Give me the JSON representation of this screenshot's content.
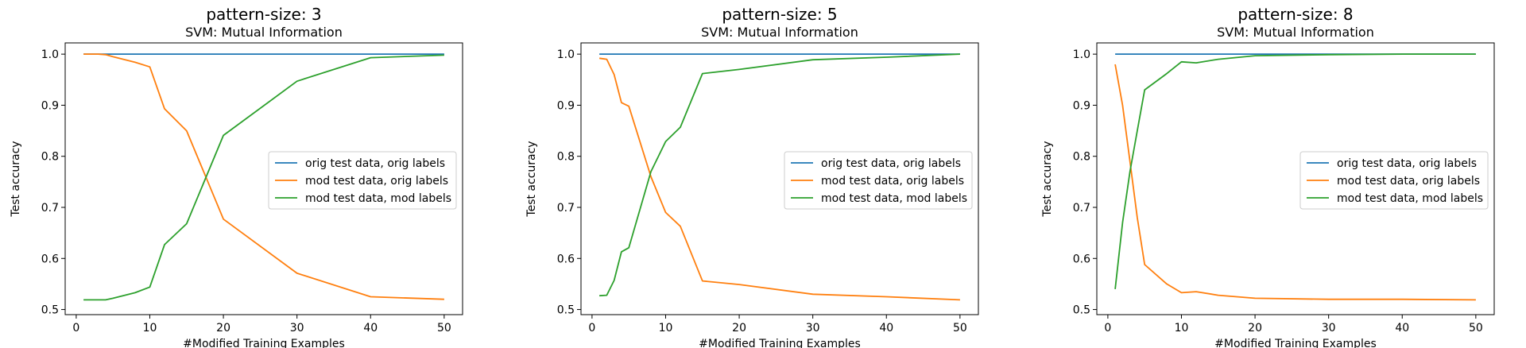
{
  "figure": {
    "series_styles": [
      {
        "key": "orig_orig",
        "color": "#1f77b4"
      },
      {
        "key": "mod_orig",
        "color": "#ff7f0e"
      },
      {
        "key": "mod_mod",
        "color": "#2ca02c"
      }
    ]
  },
  "chart_data": [
    {
      "type": "line",
      "title": "pattern-size: 3",
      "subtitle": "SVM: Mutual Information",
      "xlabel": "#Modified Training Examples",
      "ylabel": "Test accuracy",
      "xlim": [
        -1.5,
        52.5
      ],
      "ylim": [
        0.49,
        1.022
      ],
      "xticks": [
        0,
        10,
        20,
        30,
        40,
        50
      ],
      "yticks": [
        0.5,
        0.6,
        0.7,
        0.8,
        0.9,
        1.0
      ],
      "grid": false,
      "legend_position": "center-right",
      "series": [
        {
          "name": "orig test data, orig labels",
          "color": "#1f77b4",
          "x": [
            1,
            2,
            3,
            4,
            5,
            8,
            10,
            12,
            15,
            20,
            30,
            40,
            50
          ],
          "y": [
            1.0,
            1.0,
            1.0,
            1.0,
            1.0,
            1.0,
            1.0,
            1.0,
            1.0,
            1.0,
            1.0,
            1.0,
            1.0
          ]
        },
        {
          "name": "mod test data, orig labels",
          "color": "#ff7f0e",
          "x": [
            1,
            2,
            3,
            4,
            5,
            8,
            10,
            12,
            15,
            20,
            30,
            40,
            50
          ],
          "y": [
            1.0,
            1.0,
            1.0,
            0.999,
            0.995,
            0.984,
            0.975,
            0.893,
            0.85,
            0.677,
            0.571,
            0.525,
            0.52
          ]
        },
        {
          "name": "mod test data, mod labels",
          "color": "#2ca02c",
          "x": [
            1,
            2,
            3,
            4,
            5,
            8,
            10,
            12,
            15,
            20,
            30,
            40,
            50
          ],
          "y": [
            0.519,
            0.519,
            0.519,
            0.519,
            0.522,
            0.533,
            0.544,
            0.627,
            0.668,
            0.841,
            0.947,
            0.993,
            0.998
          ]
        }
      ]
    },
    {
      "type": "line",
      "title": "pattern-size: 5",
      "subtitle": "SVM: Mutual Information",
      "xlabel": "#Modified Training Examples",
      "ylabel": "Test accuracy",
      "xlim": [
        -1.5,
        52.5
      ],
      "ylim": [
        0.49,
        1.022
      ],
      "xticks": [
        0,
        10,
        20,
        30,
        40,
        50
      ],
      "yticks": [
        0.5,
        0.6,
        0.7,
        0.8,
        0.9,
        1.0
      ],
      "grid": false,
      "legend_position": "center-right",
      "series": [
        {
          "name": "orig test data, orig labels",
          "color": "#1f77b4",
          "x": [
            1,
            2,
            3,
            4,
            5,
            8,
            10,
            12,
            15,
            20,
            30,
            40,
            50
          ],
          "y": [
            1.0,
            1.0,
            1.0,
            1.0,
            1.0,
            1.0,
            1.0,
            1.0,
            1.0,
            1.0,
            1.0,
            1.0,
            1.0
          ]
        },
        {
          "name": "mod test data, orig labels",
          "color": "#ff7f0e",
          "x": [
            1,
            2,
            3,
            4,
            5,
            8,
            10,
            12,
            15,
            20,
            30,
            40,
            50
          ],
          "y": [
            0.992,
            0.99,
            0.96,
            0.905,
            0.898,
            0.76,
            0.69,
            0.663,
            0.556,
            0.549,
            0.53,
            0.525,
            0.519
          ]
        },
        {
          "name": "mod test data, mod labels",
          "color": "#2ca02c",
          "x": [
            1,
            2,
            3,
            4,
            5,
            8,
            10,
            12,
            15,
            20,
            30,
            40,
            50
          ],
          "y": [
            0.527,
            0.528,
            0.557,
            0.613,
            0.621,
            0.77,
            0.829,
            0.857,
            0.962,
            0.97,
            0.989,
            0.994,
            1.0
          ]
        }
      ]
    },
    {
      "type": "line",
      "title": "pattern-size: 8",
      "subtitle": "SVM: Mutual Information",
      "xlabel": "#Modified Training Examples",
      "ylabel": "Test accuracy",
      "xlim": [
        -1.5,
        52.5
      ],
      "ylim": [
        0.49,
        1.022
      ],
      "xticks": [
        0,
        10,
        20,
        30,
        40,
        50
      ],
      "yticks": [
        0.5,
        0.6,
        0.7,
        0.8,
        0.9,
        1.0
      ],
      "grid": false,
      "legend_position": "center-right",
      "series": [
        {
          "name": "orig test data, orig labels",
          "color": "#1f77b4",
          "x": [
            1,
            2,
            3,
            4,
            5,
            8,
            10,
            12,
            15,
            20,
            30,
            40,
            50
          ],
          "y": [
            1.0,
            1.0,
            1.0,
            1.0,
            1.0,
            1.0,
            1.0,
            1.0,
            1.0,
            1.0,
            1.0,
            1.0,
            1.0
          ]
        },
        {
          "name": "mod test data, orig labels",
          "color": "#ff7f0e",
          "x": [
            1,
            2,
            3,
            4,
            5,
            8,
            10,
            12,
            15,
            20,
            30,
            40,
            50
          ],
          "y": [
            0.98,
            0.9,
            0.79,
            0.68,
            0.588,
            0.55,
            0.533,
            0.535,
            0.528,
            0.522,
            0.52,
            0.52,
            0.519
          ]
        },
        {
          "name": "mod test data, mod labels",
          "color": "#2ca02c",
          "x": [
            1,
            2,
            3,
            4,
            5,
            8,
            10,
            12,
            15,
            20,
            30,
            40,
            50
          ],
          "y": [
            0.54,
            0.67,
            0.77,
            0.85,
            0.93,
            0.962,
            0.985,
            0.983,
            0.99,
            0.997,
            0.999,
            1.0,
            1.0
          ]
        }
      ]
    }
  ]
}
